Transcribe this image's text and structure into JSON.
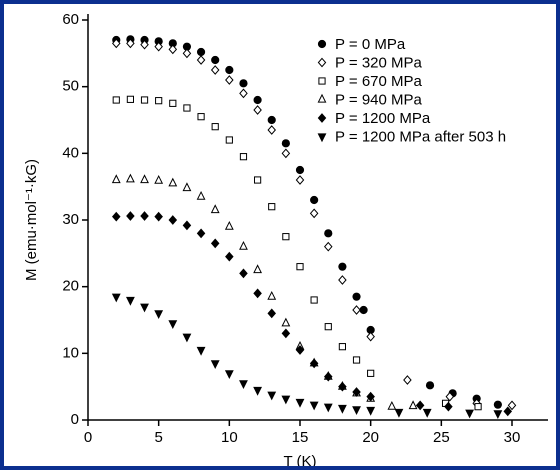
{
  "chart_data": {
    "type": "scatter",
    "x_label": "T (K)",
    "y_label": "M (emu·mol⁻¹·kG)",
    "xlim": [
      0,
      30
    ],
    "xticks": [
      0,
      5,
      10,
      15,
      20,
      25,
      30
    ],
    "ylim": [
      0,
      60
    ],
    "yticks": [
      0,
      10,
      20,
      30,
      40,
      50,
      60
    ],
    "legend": "upper right",
    "series": [
      {
        "name": "P = 0 MPa",
        "color": "#000000",
        "marker": "circle-filled",
        "x": [
          2,
          3,
          4,
          5,
          6,
          7,
          8,
          9,
          10,
          11,
          12,
          13,
          14,
          15,
          16,
          17,
          18,
          19,
          19.5,
          20,
          24.2,
          25.8,
          27.5,
          29
        ],
        "values": [
          57,
          57.1,
          57,
          56.8,
          56.5,
          56,
          55.2,
          54,
          52.5,
          50.5,
          48,
          45,
          41.5,
          37.5,
          33,
          28,
          23,
          18.5,
          16.5,
          13.5,
          5.2,
          4,
          3.2,
          2.3
        ]
      },
      {
        "name": "P = 320 MPa",
        "color": "#000000",
        "marker": "diamond-open",
        "x": [
          2,
          3,
          4,
          5,
          6,
          7,
          8,
          9,
          10,
          11,
          12,
          13,
          14,
          15,
          16,
          17,
          18,
          19,
          20,
          22.6,
          25.6,
          27.5,
          30
        ],
        "values": [
          56.5,
          56.5,
          56.3,
          56,
          55.6,
          55,
          54,
          52.5,
          51,
          49,
          46.5,
          43.5,
          40,
          36,
          31,
          26,
          21,
          16.5,
          12.5,
          6,
          3.5,
          2.5,
          2.2
        ]
      },
      {
        "name": "P = 670 MPa",
        "color": "#000000",
        "marker": "square-open",
        "x": [
          2,
          3,
          4,
          5,
          6,
          7,
          8,
          9,
          10,
          11,
          12,
          13,
          14,
          15,
          16,
          17,
          18,
          19,
          20,
          25.3,
          27.6
        ],
        "values": [
          48,
          48.1,
          48,
          47.9,
          47.5,
          46.8,
          45.5,
          44,
          42,
          39.5,
          36,
          32,
          27.5,
          23,
          18,
          14,
          11,
          9,
          7,
          2.5,
          2
        ]
      },
      {
        "name": "P = 940 MPa",
        "color": "#000000",
        "marker": "triangle-open",
        "x": [
          2,
          3,
          4,
          5,
          6,
          7,
          8,
          9,
          10,
          11,
          12,
          13,
          14,
          15,
          16,
          17,
          18,
          19,
          20,
          21.5,
          23
        ],
        "values": [
          36,
          36.1,
          36,
          35.9,
          35.5,
          34.8,
          33.5,
          31.5,
          29,
          26,
          22.5,
          18.5,
          14.5,
          11,
          8.5,
          6.5,
          5,
          4,
          3.2,
          2,
          2.1
        ]
      },
      {
        "name": "P = 1200 MPa",
        "color": "#000000",
        "marker": "diamond-filled",
        "x": [
          2,
          3,
          4,
          5,
          6,
          7,
          8,
          9,
          10,
          11,
          12,
          13,
          14,
          15,
          16,
          17,
          18,
          19,
          20,
          23.5,
          25.5,
          29.7
        ],
        "values": [
          30.5,
          30.6,
          30.6,
          30.5,
          30,
          29.2,
          28,
          26.5,
          24.5,
          22,
          19,
          16,
          13,
          10.5,
          8.5,
          6.5,
          5,
          4.2,
          3.5,
          2.2,
          2,
          1.3
        ]
      },
      {
        "name": "P = 1200 MPa after 503 h",
        "color": "#000000",
        "marker": "triangle-down-filled",
        "x": [
          2,
          3,
          4,
          5,
          6,
          7,
          8,
          9,
          10,
          11,
          12,
          13,
          14,
          15,
          16,
          17,
          18,
          19,
          20,
          22,
          24,
          27,
          29
        ],
        "values": [
          18.5,
          18,
          17,
          16,
          14.5,
          12.5,
          10.5,
          8.5,
          7,
          5.5,
          4.5,
          3.8,
          3.2,
          2.7,
          2.3,
          2,
          1.8,
          1.6,
          1.5,
          1.2,
          1.2,
          1.1,
          1
        ]
      }
    ]
  }
}
